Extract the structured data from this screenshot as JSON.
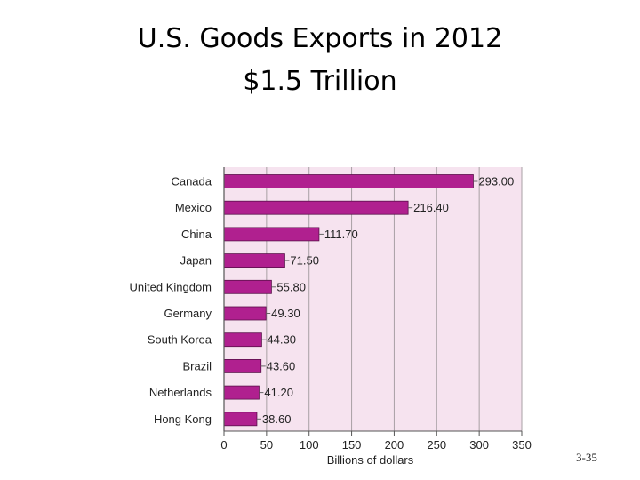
{
  "slide": {
    "title_line1": "U.S. Goods Exports in 2012",
    "title_line2": "$1.5 Trillion",
    "number": "3-35"
  },
  "colors": {
    "bar": "#b0208f",
    "plot_bg": "#f6e3ef",
    "grid": "#a8a0a4"
  },
  "chart_data": {
    "type": "bar",
    "orientation": "horizontal",
    "categories": [
      "Canada",
      "Mexico",
      "China",
      "Japan",
      "United Kingdom",
      "Germany",
      "South Korea",
      "Brazil",
      "Netherlands",
      "Hong Kong"
    ],
    "values": [
      293.0,
      216.4,
      111.7,
      71.5,
      55.8,
      49.3,
      44.3,
      43.6,
      41.2,
      38.6
    ],
    "value_labels": [
      "293.00",
      "216.40",
      "111.70",
      "71.50",
      "55.80",
      "49.30",
      "44.30",
      "43.60",
      "41.20",
      "38.60"
    ],
    "xlabel": "Billions of dollars",
    "ylabel": "",
    "xlim": [
      0,
      350
    ],
    "xticks": [
      0,
      50,
      100,
      150,
      200,
      250,
      300,
      350
    ],
    "grid": true
  }
}
